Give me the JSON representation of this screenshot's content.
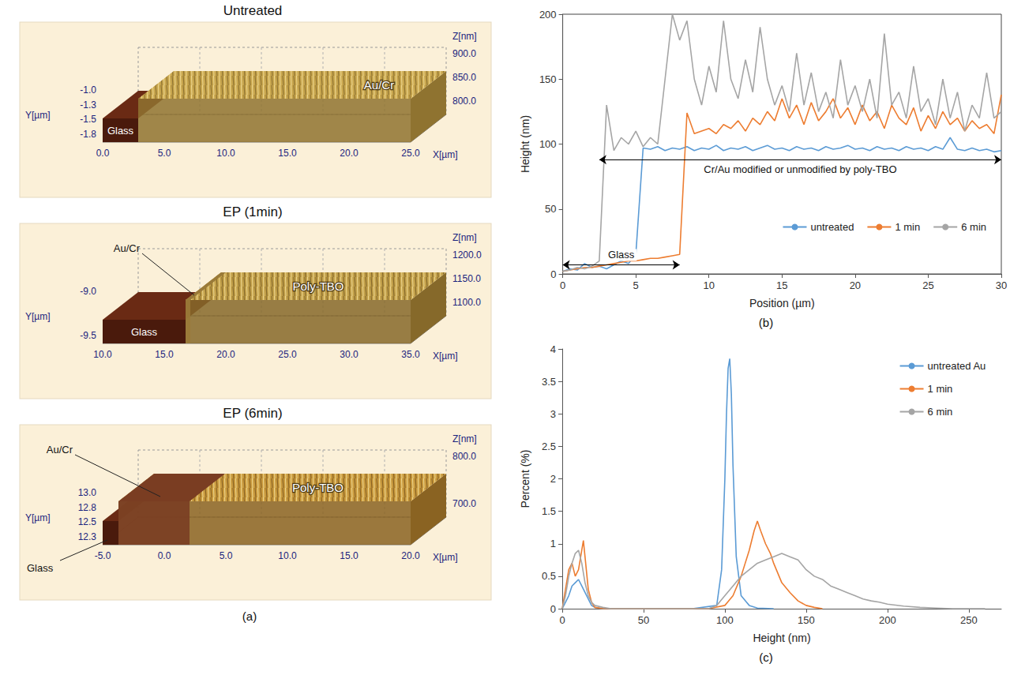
{
  "chart_data": [
    {
      "type": "line",
      "panel": "(b)",
      "xlabel": "Position (µm)",
      "ylabel": "Height (nm)",
      "xlim": [
        0,
        30
      ],
      "xticks": [
        0,
        5,
        10,
        15,
        20,
        25,
        30
      ],
      "ylim": [
        0,
        200
      ],
      "yticks": [
        0,
        50,
        100,
        150,
        200
      ],
      "grid": false,
      "legend": "lower right",
      "x": [
        0,
        0.5,
        1,
        1.5,
        2,
        2.5,
        3,
        3.5,
        4,
        4.5,
        5,
        5.5,
        6,
        6.5,
        7,
        7.5,
        8,
        8.5,
        9,
        9.5,
        10,
        10.5,
        11,
        11.5,
        12,
        12.5,
        13,
        13.5,
        14,
        14.5,
        15,
        15.5,
        16,
        16.5,
        17,
        17.5,
        18,
        18.5,
        19,
        19.5,
        20,
        20.5,
        21,
        21.5,
        22,
        22.5,
        23,
        23.5,
        24,
        24.5,
        25,
        25.5,
        26,
        26.5,
        27,
        27.5,
        28,
        28.5,
        29,
        29.5,
        30
      ],
      "series": [
        {
          "name": "untreated",
          "color": "#5b9bd5",
          "values": [
            2,
            4,
            3,
            8,
            5,
            6,
            4,
            7,
            10,
            8,
            15,
            97,
            96,
            98,
            95,
            97,
            96,
            98,
            95,
            97,
            96,
            99,
            95,
            97,
            96,
            98,
            95,
            97,
            99,
            96,
            97,
            95,
            98,
            96,
            97,
            95,
            98,
            96,
            97,
            99,
            96,
            97,
            95,
            98,
            96,
            97,
            95,
            98,
            96,
            97,
            95,
            98,
            96,
            105,
            96,
            95,
            97,
            95,
            96,
            94,
            95
          ]
        },
        {
          "name": "1 min",
          "color": "#ed7d31",
          "values": [
            2,
            3,
            4,
            5,
            5,
            6,
            7,
            8,
            9,
            10,
            10,
            11,
            12,
            12,
            13,
            14,
            15,
            124,
            108,
            110,
            112,
            108,
            115,
            112,
            118,
            110,
            120,
            115,
            125,
            118,
            135,
            120,
            130,
            115,
            132,
            118,
            125,
            135,
            120,
            128,
            115,
            130,
            118,
            125,
            112,
            130,
            120,
            115,
            128,
            110,
            122,
            112,
            125,
            115,
            120,
            110,
            118,
            112,
            115,
            108,
            138
          ]
        },
        {
          "name": "6 min",
          "color": "#a5a5a5",
          "values": [
            2,
            3,
            5,
            4,
            6,
            10,
            130,
            95,
            105,
            100,
            110,
            98,
            105,
            100,
            150,
            200,
            180,
            195,
            150,
            130,
            160,
            140,
            195,
            150,
            135,
            165,
            140,
            190,
            150,
            130,
            145,
            125,
            170,
            130,
            155,
            125,
            140,
            120,
            165,
            130,
            145,
            125,
            150,
            120,
            185,
            130,
            140,
            120,
            160,
            125,
            135,
            115,
            150,
            120,
            140,
            110,
            130,
            120,
            155,
            120,
            125
          ]
        }
      ],
      "annotations": [
        {
          "text": "Glass",
          "x": [
            0,
            8
          ],
          "y": 7,
          "position": "above"
        },
        {
          "text": "Cr/Au modified or unmodified by poly-TBO",
          "x": [
            2.5,
            30
          ],
          "y": 88,
          "position": "below"
        }
      ]
    },
    {
      "type": "line",
      "panel": "(c)",
      "xlabel": "Height (nm)",
      "ylabel": "Percent (%)",
      "xlim": [
        0,
        270
      ],
      "xticks": [
        0,
        50,
        100,
        150,
        200,
        250
      ],
      "ylim": [
        0,
        4
      ],
      "yticks": [
        0,
        0.5,
        1,
        1.5,
        2,
        2.5,
        3,
        3.5,
        4
      ],
      "grid": false,
      "legend": "upper right",
      "series": [
        {
          "name": "untreated Au",
          "color": "#5b9bd5",
          "x": [
            0,
            2,
            4,
            6,
            8,
            10,
            12,
            14,
            16,
            18,
            20,
            25,
            30,
            50,
            80,
            95,
            98,
            100,
            101,
            102,
            103,
            104,
            105,
            107,
            110,
            115,
            120,
            130
          ],
          "values": [
            0,
            0.1,
            0.2,
            0.35,
            0.4,
            0.45,
            0.35,
            0.25,
            0.15,
            0.05,
            0.02,
            0,
            0,
            0,
            0,
            0.05,
            0.6,
            2.0,
            3.0,
            3.7,
            3.85,
            3.3,
            2.2,
            0.8,
            0.2,
            0.05,
            0.01,
            0
          ]
        },
        {
          "name": "1 min",
          "color": "#ed7d31",
          "x": [
            0,
            2,
            4,
            6,
            8,
            10,
            12,
            13,
            14,
            16,
            18,
            20,
            25,
            50,
            90,
            100,
            105,
            110,
            115,
            118,
            120,
            122,
            125,
            128,
            130,
            135,
            140,
            145,
            150,
            155,
            160
          ],
          "values": [
            0,
            0.3,
            0.6,
            0.7,
            0.5,
            0.6,
            0.9,
            1.05,
            0.8,
            0.3,
            0.1,
            0.02,
            0,
            0,
            0,
            0.05,
            0.2,
            0.5,
            0.9,
            1.2,
            1.35,
            1.2,
            1.0,
            0.85,
            0.7,
            0.4,
            0.25,
            0.12,
            0.05,
            0.02,
            0
          ]
        },
        {
          "name": "6 min",
          "color": "#a5a5a5",
          "x": [
            0,
            2,
            4,
            6,
            8,
            10,
            12,
            14,
            16,
            18,
            20,
            25,
            30,
            90,
            95,
            100,
            105,
            110,
            115,
            120,
            125,
            130,
            135,
            140,
            145,
            150,
            155,
            160,
            165,
            170,
            175,
            180,
            185,
            190,
            195,
            200,
            210,
            220,
            230,
            240,
            260
          ],
          "values": [
            0,
            0.2,
            0.5,
            0.7,
            0.85,
            0.9,
            0.7,
            0.4,
            0.2,
            0.1,
            0.05,
            0.02,
            0,
            0,
            0.05,
            0.2,
            0.35,
            0.5,
            0.6,
            0.7,
            0.75,
            0.8,
            0.85,
            0.8,
            0.75,
            0.6,
            0.5,
            0.45,
            0.35,
            0.3,
            0.25,
            0.2,
            0.15,
            0.12,
            0.1,
            0.07,
            0.04,
            0.02,
            0.01,
            0,
            0
          ]
        }
      ]
    }
  ],
  "panel_a": {
    "caption": "(a)",
    "panels": [
      {
        "title": "Untreated",
        "regions": [
          "Glass",
          "Au/Cr"
        ],
        "x_title": "X[µm]",
        "y_title": "Y[µm]",
        "z_title": "Z[nm]",
        "x_ticks": [
          "0.0",
          "5.0",
          "10.0",
          "15.0",
          "20.0",
          "25.0"
        ],
        "y_ticks": [
          "-1.0",
          "-1.3",
          "-1.5",
          "-1.8"
        ],
        "z_ticks": [
          "900.0",
          "850.0",
          "800.0"
        ]
      },
      {
        "title": "EP (1min)",
        "regions": [
          "Glass",
          "Au/Cr",
          "Poly-TBO"
        ],
        "x_title": "X[µm]",
        "y_title": "Y[µm]",
        "z_title": "Z[nm]",
        "x_ticks": [
          "10.0",
          "15.0",
          "20.0",
          "25.0",
          "30.0",
          "35.0"
        ],
        "y_ticks": [
          "-9.0",
          "-9.5"
        ],
        "z_ticks": [
          "1200.0",
          "1150.0",
          "1100.0"
        ]
      },
      {
        "title": "EP (6min)",
        "regions": [
          "Glass",
          "Au/Cr",
          "Poly-TBO"
        ],
        "x_title": "X[µm]",
        "y_title": "Y[µm]",
        "z_title": "Z[nm]",
        "x_ticks": [
          "-5.0",
          "0.0",
          "5.0",
          "10.0",
          "15.0",
          "20.0"
        ],
        "y_ticks": [
          "13.0",
          "12.8",
          "12.5",
          "12.3"
        ],
        "z_ticks": [
          "800.0",
          "700.0"
        ]
      }
    ]
  }
}
